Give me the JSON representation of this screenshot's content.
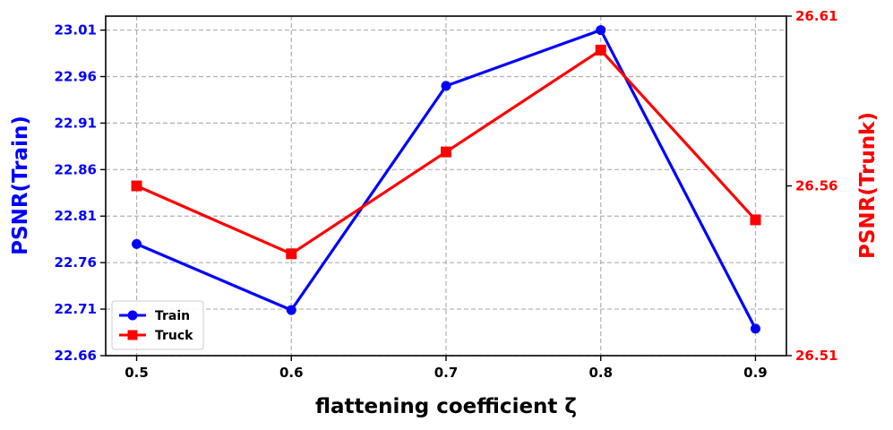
{
  "chart_data": {
    "type": "line",
    "xlabel": "flattening coefficient ζ",
    "ylabel_left": "PSNR(Train)",
    "ylabel_right": "PSNR(Trunk)",
    "x": [
      0.5,
      0.6,
      0.7,
      0.8,
      0.9
    ],
    "x_tick_labels": [
      "0.5",
      "0.6",
      "0.7",
      "0.8",
      "0.9"
    ],
    "xlim": [
      0.48,
      0.92
    ],
    "ylim_left": [
      22.66,
      23.025
    ],
    "ylim_right": [
      26.51,
      26.61
    ],
    "left_ticks": [
      "22.66",
      "22.71",
      "22.76",
      "22.81",
      "22.86",
      "22.91",
      "22.96",
      "23.01"
    ],
    "right_ticks": [
      "26.51",
      "26.56",
      "26.61"
    ],
    "grid": true,
    "legend_position": "lower-left",
    "series": [
      {
        "name": "Train",
        "axis": "left",
        "color": "#0000ff",
        "marker": "circle",
        "values": [
          22.78,
          22.709,
          22.95,
          23.01,
          22.689
        ]
      },
      {
        "name": "Truck",
        "axis": "right",
        "color": "#ff0000",
        "marker": "square",
        "values": [
          26.56,
          26.54,
          26.57,
          26.6,
          26.55
        ]
      }
    ]
  }
}
